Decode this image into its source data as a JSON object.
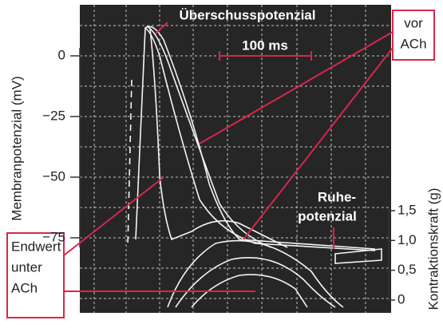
{
  "left_axis": {
    "label": "Membranpotenzial (mV)",
    "ticks": [
      0,
      {
        "value": -25,
        "label": "−25"
      },
      {
        "value": -50,
        "label": "−50"
      },
      {
        "value": -75,
        "label": "−75"
      }
    ]
  },
  "right_axis": {
    "label": "Kontraktionskraft (g)",
    "ticks": [
      {
        "value": 1.5,
        "label": "1,5"
      },
      {
        "value": 1.0,
        "label": "1,0"
      },
      {
        "value": 0.5,
        "label": "0,5"
      },
      0
    ]
  },
  "annotations": {
    "overshoot": "Überschusspotenzial",
    "scale": "100 ms",
    "before_line1": "vor",
    "before_line2": "ACh",
    "rest_line1": "Ruhe-",
    "rest_line2": "potenzial",
    "end_line1": "Endwert",
    "end_line2": "unter",
    "end_line3": "ACh"
  }
}
